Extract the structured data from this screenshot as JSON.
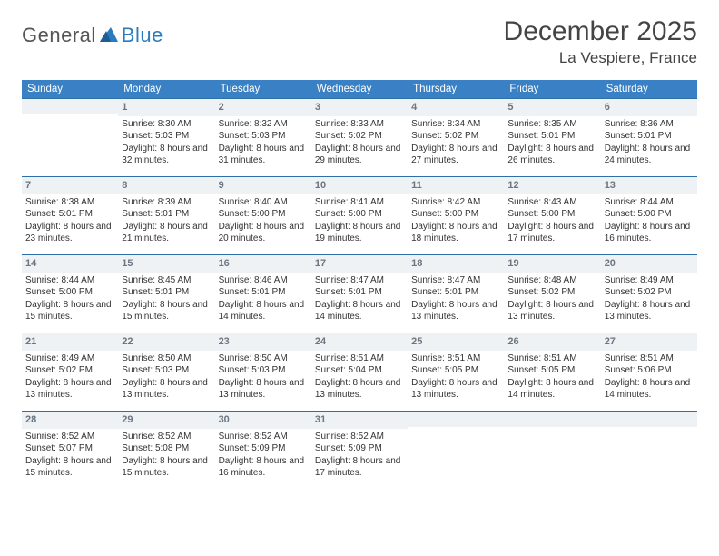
{
  "logo": {
    "text_general": "General",
    "text_blue": "Blue"
  },
  "title": "December 2025",
  "location": "La Vespiere, France",
  "colors": {
    "header_bg": "#3a80c4",
    "header_text": "#ffffff",
    "daynum_bg": "#eef2f5",
    "daynum_border": "#2f6fa8",
    "daynum_text": "#6b7680",
    "body_text": "#333333",
    "logo_gray": "#555555",
    "logo_blue": "#2b7bbf"
  },
  "weekdays": [
    "Sunday",
    "Monday",
    "Tuesday",
    "Wednesday",
    "Thursday",
    "Friday",
    "Saturday"
  ],
  "weeks": [
    [
      null,
      {
        "day": "1",
        "sunrise": "Sunrise: 8:30 AM",
        "sunset": "Sunset: 5:03 PM",
        "daylight": "Daylight: 8 hours and 32 minutes."
      },
      {
        "day": "2",
        "sunrise": "Sunrise: 8:32 AM",
        "sunset": "Sunset: 5:03 PM",
        "daylight": "Daylight: 8 hours and 31 minutes."
      },
      {
        "day": "3",
        "sunrise": "Sunrise: 8:33 AM",
        "sunset": "Sunset: 5:02 PM",
        "daylight": "Daylight: 8 hours and 29 minutes."
      },
      {
        "day": "4",
        "sunrise": "Sunrise: 8:34 AM",
        "sunset": "Sunset: 5:02 PM",
        "daylight": "Daylight: 8 hours and 27 minutes."
      },
      {
        "day": "5",
        "sunrise": "Sunrise: 8:35 AM",
        "sunset": "Sunset: 5:01 PM",
        "daylight": "Daylight: 8 hours and 26 minutes."
      },
      {
        "day": "6",
        "sunrise": "Sunrise: 8:36 AM",
        "sunset": "Sunset: 5:01 PM",
        "daylight": "Daylight: 8 hours and 24 minutes."
      }
    ],
    [
      {
        "day": "7",
        "sunrise": "Sunrise: 8:38 AM",
        "sunset": "Sunset: 5:01 PM",
        "daylight": "Daylight: 8 hours and 23 minutes."
      },
      {
        "day": "8",
        "sunrise": "Sunrise: 8:39 AM",
        "sunset": "Sunset: 5:01 PM",
        "daylight": "Daylight: 8 hours and 21 minutes."
      },
      {
        "day": "9",
        "sunrise": "Sunrise: 8:40 AM",
        "sunset": "Sunset: 5:00 PM",
        "daylight": "Daylight: 8 hours and 20 minutes."
      },
      {
        "day": "10",
        "sunrise": "Sunrise: 8:41 AM",
        "sunset": "Sunset: 5:00 PM",
        "daylight": "Daylight: 8 hours and 19 minutes."
      },
      {
        "day": "11",
        "sunrise": "Sunrise: 8:42 AM",
        "sunset": "Sunset: 5:00 PM",
        "daylight": "Daylight: 8 hours and 18 minutes."
      },
      {
        "day": "12",
        "sunrise": "Sunrise: 8:43 AM",
        "sunset": "Sunset: 5:00 PM",
        "daylight": "Daylight: 8 hours and 17 minutes."
      },
      {
        "day": "13",
        "sunrise": "Sunrise: 8:44 AM",
        "sunset": "Sunset: 5:00 PM",
        "daylight": "Daylight: 8 hours and 16 minutes."
      }
    ],
    [
      {
        "day": "14",
        "sunrise": "Sunrise: 8:44 AM",
        "sunset": "Sunset: 5:00 PM",
        "daylight": "Daylight: 8 hours and 15 minutes."
      },
      {
        "day": "15",
        "sunrise": "Sunrise: 8:45 AM",
        "sunset": "Sunset: 5:01 PM",
        "daylight": "Daylight: 8 hours and 15 minutes."
      },
      {
        "day": "16",
        "sunrise": "Sunrise: 8:46 AM",
        "sunset": "Sunset: 5:01 PM",
        "daylight": "Daylight: 8 hours and 14 minutes."
      },
      {
        "day": "17",
        "sunrise": "Sunrise: 8:47 AM",
        "sunset": "Sunset: 5:01 PM",
        "daylight": "Daylight: 8 hours and 14 minutes."
      },
      {
        "day": "18",
        "sunrise": "Sunrise: 8:47 AM",
        "sunset": "Sunset: 5:01 PM",
        "daylight": "Daylight: 8 hours and 13 minutes."
      },
      {
        "day": "19",
        "sunrise": "Sunrise: 8:48 AM",
        "sunset": "Sunset: 5:02 PM",
        "daylight": "Daylight: 8 hours and 13 minutes."
      },
      {
        "day": "20",
        "sunrise": "Sunrise: 8:49 AM",
        "sunset": "Sunset: 5:02 PM",
        "daylight": "Daylight: 8 hours and 13 minutes."
      }
    ],
    [
      {
        "day": "21",
        "sunrise": "Sunrise: 8:49 AM",
        "sunset": "Sunset: 5:02 PM",
        "daylight": "Daylight: 8 hours and 13 minutes."
      },
      {
        "day": "22",
        "sunrise": "Sunrise: 8:50 AM",
        "sunset": "Sunset: 5:03 PM",
        "daylight": "Daylight: 8 hours and 13 minutes."
      },
      {
        "day": "23",
        "sunrise": "Sunrise: 8:50 AM",
        "sunset": "Sunset: 5:03 PM",
        "daylight": "Daylight: 8 hours and 13 minutes."
      },
      {
        "day": "24",
        "sunrise": "Sunrise: 8:51 AM",
        "sunset": "Sunset: 5:04 PM",
        "daylight": "Daylight: 8 hours and 13 minutes."
      },
      {
        "day": "25",
        "sunrise": "Sunrise: 8:51 AM",
        "sunset": "Sunset: 5:05 PM",
        "daylight": "Daylight: 8 hours and 13 minutes."
      },
      {
        "day": "26",
        "sunrise": "Sunrise: 8:51 AM",
        "sunset": "Sunset: 5:05 PM",
        "daylight": "Daylight: 8 hours and 14 minutes."
      },
      {
        "day": "27",
        "sunrise": "Sunrise: 8:51 AM",
        "sunset": "Sunset: 5:06 PM",
        "daylight": "Daylight: 8 hours and 14 minutes."
      }
    ],
    [
      {
        "day": "28",
        "sunrise": "Sunrise: 8:52 AM",
        "sunset": "Sunset: 5:07 PM",
        "daylight": "Daylight: 8 hours and 15 minutes."
      },
      {
        "day": "29",
        "sunrise": "Sunrise: 8:52 AM",
        "sunset": "Sunset: 5:08 PM",
        "daylight": "Daylight: 8 hours and 15 minutes."
      },
      {
        "day": "30",
        "sunrise": "Sunrise: 8:52 AM",
        "sunset": "Sunset: 5:09 PM",
        "daylight": "Daylight: 8 hours and 16 minutes."
      },
      {
        "day": "31",
        "sunrise": "Sunrise: 8:52 AM",
        "sunset": "Sunset: 5:09 PM",
        "daylight": "Daylight: 8 hours and 17 minutes."
      },
      null,
      null,
      null
    ]
  ]
}
